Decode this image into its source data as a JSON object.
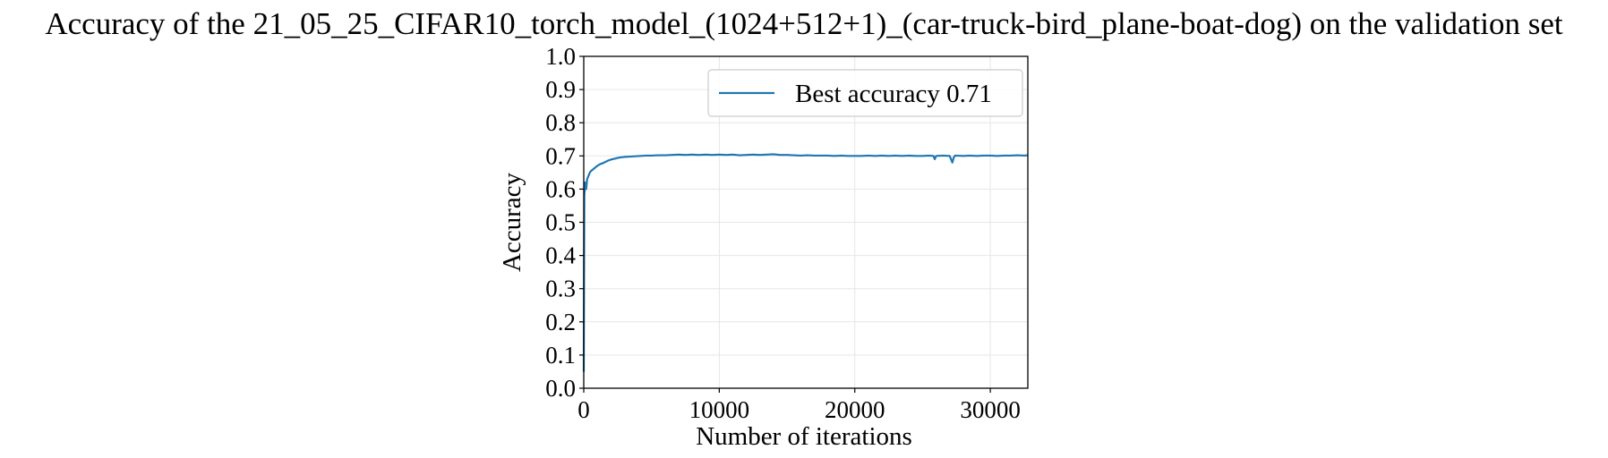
{
  "chart_data": {
    "type": "line",
    "title": "Accuracy of the 21_05_25_CIFAR10_torch_model_(1024+512+1)_(car-truck-bird_plane-boat-dog) on the validation set",
    "xlabel": "Number of iterations",
    "ylabel": "Accuracy",
    "xlim": [
      0,
      32768
    ],
    "ylim": [
      0.0,
      1.0
    ],
    "x_ticks": [
      0,
      10000,
      20000,
      30000
    ],
    "x_tick_labels": [
      "0",
      "10000",
      "20000",
      "30000"
    ],
    "y_ticks": [
      0.0,
      0.1,
      0.2,
      0.3,
      0.4,
      0.5,
      0.6,
      0.7,
      0.8,
      0.9,
      1.0
    ],
    "y_tick_labels": [
      "0.0",
      "0.1",
      "0.2",
      "0.3",
      "0.4",
      "0.5",
      "0.6",
      "0.7",
      "0.8",
      "0.9",
      "1.0"
    ],
    "grid": true,
    "legend_position": "top-right",
    "series": [
      {
        "name": "Best accuracy 0.71",
        "color": "#1f77b4",
        "x": [
          0,
          40,
          100,
          180,
          250,
          350,
          450,
          550,
          700,
          850,
          1000,
          1200,
          1400,
          1600,
          1800,
          2000,
          2300,
          2600,
          3000,
          3400,
          3800,
          4200,
          4600,
          5000,
          5500,
          6000,
          6500,
          7000,
          7500,
          8000,
          8500,
          9000,
          9500,
          10000,
          10500,
          11000,
          11500,
          12000,
          12500,
          13000,
          13500,
          14000,
          14500,
          15000,
          15500,
          16000,
          16500,
          17000,
          17500,
          18000,
          18500,
          19000,
          19500,
          20000,
          20500,
          21000,
          21500,
          22000,
          22500,
          23000,
          23500,
          24000,
          24500,
          25000,
          25500,
          25800,
          25900,
          26000,
          26500,
          27000,
          27200,
          27300,
          27400,
          28000,
          28500,
          29000,
          29500,
          30000,
          30500,
          31000,
          31500,
          32000,
          32500,
          32768
        ],
        "y": [
          0.05,
          0.58,
          0.62,
          0.6,
          0.63,
          0.64,
          0.65,
          0.655,
          0.66,
          0.665,
          0.67,
          0.675,
          0.678,
          0.682,
          0.686,
          0.689,
          0.692,
          0.695,
          0.697,
          0.698,
          0.699,
          0.7,
          0.701,
          0.701,
          0.702,
          0.702,
          0.703,
          0.704,
          0.703,
          0.704,
          0.703,
          0.704,
          0.703,
          0.704,
          0.703,
          0.704,
          0.702,
          0.703,
          0.704,
          0.703,
          0.704,
          0.705,
          0.703,
          0.703,
          0.702,
          0.701,
          0.702,
          0.701,
          0.701,
          0.701,
          0.7,
          0.701,
          0.7,
          0.7,
          0.7,
          0.701,
          0.7,
          0.701,
          0.7,
          0.701,
          0.7,
          0.701,
          0.7,
          0.7,
          0.701,
          0.7,
          0.69,
          0.7,
          0.701,
          0.7,
          0.68,
          0.695,
          0.701,
          0.7,
          0.701,
          0.7,
          0.701,
          0.701,
          0.7,
          0.701,
          0.701,
          0.702,
          0.701,
          0.702
        ]
      }
    ]
  }
}
